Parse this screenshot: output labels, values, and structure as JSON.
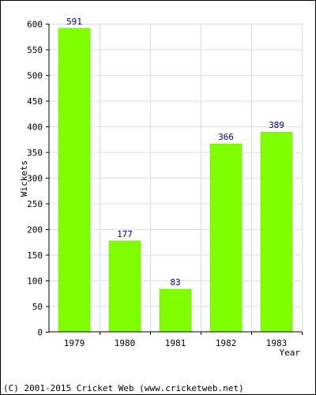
{
  "chart_data": {
    "type": "bar",
    "title": "",
    "xlabel": "Year",
    "ylabel": "Wickets",
    "categories": [
      "1979",
      "1980",
      "1981",
      "1982",
      "1983"
    ],
    "values": [
      591,
      177,
      83,
      366,
      389
    ],
    "data_labels": [
      "591",
      "177",
      "83",
      "366",
      "389"
    ],
    "ylim": [
      0,
      600
    ],
    "yticks": [
      0,
      50,
      100,
      150,
      200,
      250,
      300,
      350,
      400,
      450,
      500,
      550,
      600
    ],
    "grid": true,
    "legend": "none",
    "colors": {
      "bar": "#80ff00",
      "bar_edge": "#66cc00",
      "grid": "#dddddd",
      "axis": "#000000",
      "data_label": "#000080",
      "text": "#000000"
    }
  },
  "footer": {
    "copyright": "(C) 2001-2015 Cricket Web (www.cricketweb.net)"
  }
}
